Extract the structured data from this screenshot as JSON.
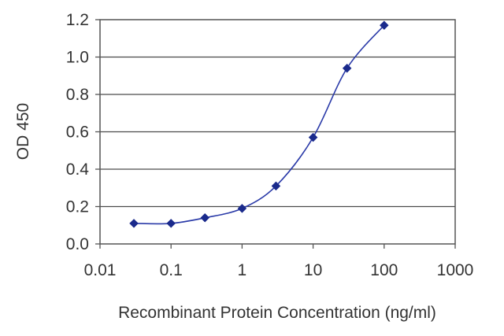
{
  "chart_data": {
    "type": "line",
    "title": "",
    "xlabel": "Recombinant Protein Concentration (ng/ml)",
    "ylabel": "OD 450",
    "x_scale": "log",
    "xlim": [
      0.01,
      1000
    ],
    "ylim": [
      0.0,
      1.2
    ],
    "x_ticks": [
      "0.01",
      "0.1",
      "1",
      "10",
      "100",
      "1000"
    ],
    "y_ticks": [
      "0.0",
      "0.2",
      "0.4",
      "0.6",
      "0.8",
      "1.0",
      "1.2"
    ],
    "grid": "horizontal",
    "legend": "none",
    "series": [
      {
        "x": [
          0.03,
          0.1,
          0.3,
          1,
          3,
          10,
          30,
          100
        ],
        "y": [
          0.11,
          0.11,
          0.14,
          0.19,
          0.31,
          0.57,
          0.94,
          1.17
        ],
        "color": "#1a2a8c"
      }
    ]
  }
}
